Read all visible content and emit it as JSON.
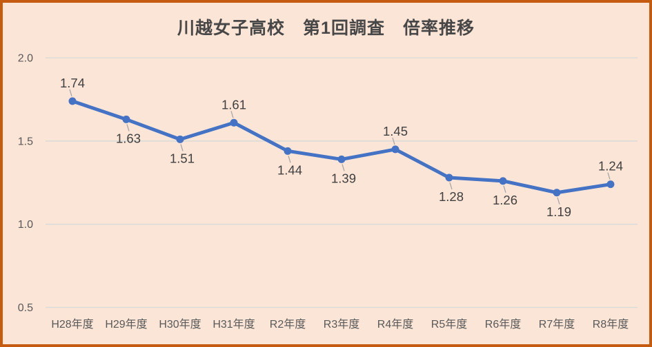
{
  "frame": {
    "background_color": "#fbe5d6",
    "border_color": "#c55a11"
  },
  "chart_data": {
    "type": "line",
    "title": "川越女子高校　第1回調査　倍率推移",
    "categories": [
      "H28年度",
      "H29年度",
      "H30年度",
      "H31年度",
      "R2年度",
      "R3年度",
      "R4年度",
      "R5年度",
      "R6年度",
      "R7年度",
      "R8年度"
    ],
    "series": [
      {
        "name": "倍率",
        "values": [
          1.74,
          1.63,
          1.51,
          1.61,
          1.44,
          1.39,
          1.45,
          1.28,
          1.26,
          1.19,
          1.24
        ],
        "color": "#4472c4"
      }
    ],
    "data_labels": [
      "1.74",
      "1.63",
      "1.51",
      "1.61",
      "1.44",
      "1.39",
      "1.45",
      "1.28",
      "1.26",
      "1.19",
      "1.24"
    ],
    "data_label_positions": [
      "above",
      "below",
      "below",
      "above",
      "below",
      "below",
      "above",
      "below",
      "below",
      "below",
      "above"
    ],
    "y_ticks": [
      "2.0",
      "1.5",
      "1.0",
      "0.5"
    ],
    "y_tick_values": [
      2.0,
      1.5,
      1.0,
      0.5
    ],
    "ylim": [
      0.5,
      2.0
    ],
    "grid": true,
    "legend": "none",
    "colors": {
      "gridline": "#dbdbd8",
      "axis_text": "#595959",
      "data_label_text": "#404040",
      "leader_line": "#a6a6a6"
    }
  }
}
